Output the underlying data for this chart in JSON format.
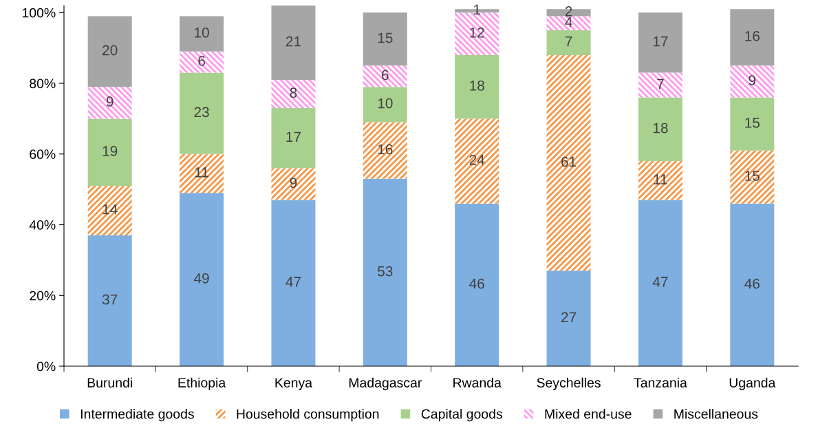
{
  "chart_data": {
    "type": "bar",
    "stacked": true,
    "data_labels": true,
    "categories": [
      "Burundi",
      "Ethiopia",
      "Kenya",
      "Madagascar",
      "Rwanda",
      "Seychelles",
      "Tanzania",
      "Uganda"
    ],
    "series": [
      {
        "name": "Intermediate goods",
        "color": "#7fafe0",
        "values": [
          37,
          49,
          47,
          53,
          46,
          27,
          47,
          46
        ]
      },
      {
        "name": "Household consumption",
        "color": "#f79646",
        "values": [
          14,
          11,
          9,
          16,
          24,
          61,
          11,
          15
        ]
      },
      {
        "name": "Capital goods",
        "color": "#a9d18e",
        "values": [
          19,
          23,
          17,
          10,
          18,
          7,
          18,
          15
        ]
      },
      {
        "name": "Mixed end-use",
        "color": "#ff99ee",
        "values": [
          9,
          6,
          8,
          6,
          12,
          4,
          7,
          9
        ]
      },
      {
        "name": "Miscellaneous",
        "color": "#a6a6a6",
        "values": [
          20,
          10,
          21,
          15,
          1,
          2,
          17,
          16
        ]
      }
    ],
    "ylim": [
      0,
      102
    ],
    "yticks": [
      {
        "value": 0,
        "label": "0%"
      },
      {
        "value": 20,
        "label": "20%"
      },
      {
        "value": 40,
        "label": "40%"
      },
      {
        "value": 60,
        "label": "60%"
      },
      {
        "value": 80,
        "label": "80%"
      },
      {
        "value": 100,
        "label": "100%"
      }
    ],
    "grid": false,
    "legend": "bottom"
  }
}
